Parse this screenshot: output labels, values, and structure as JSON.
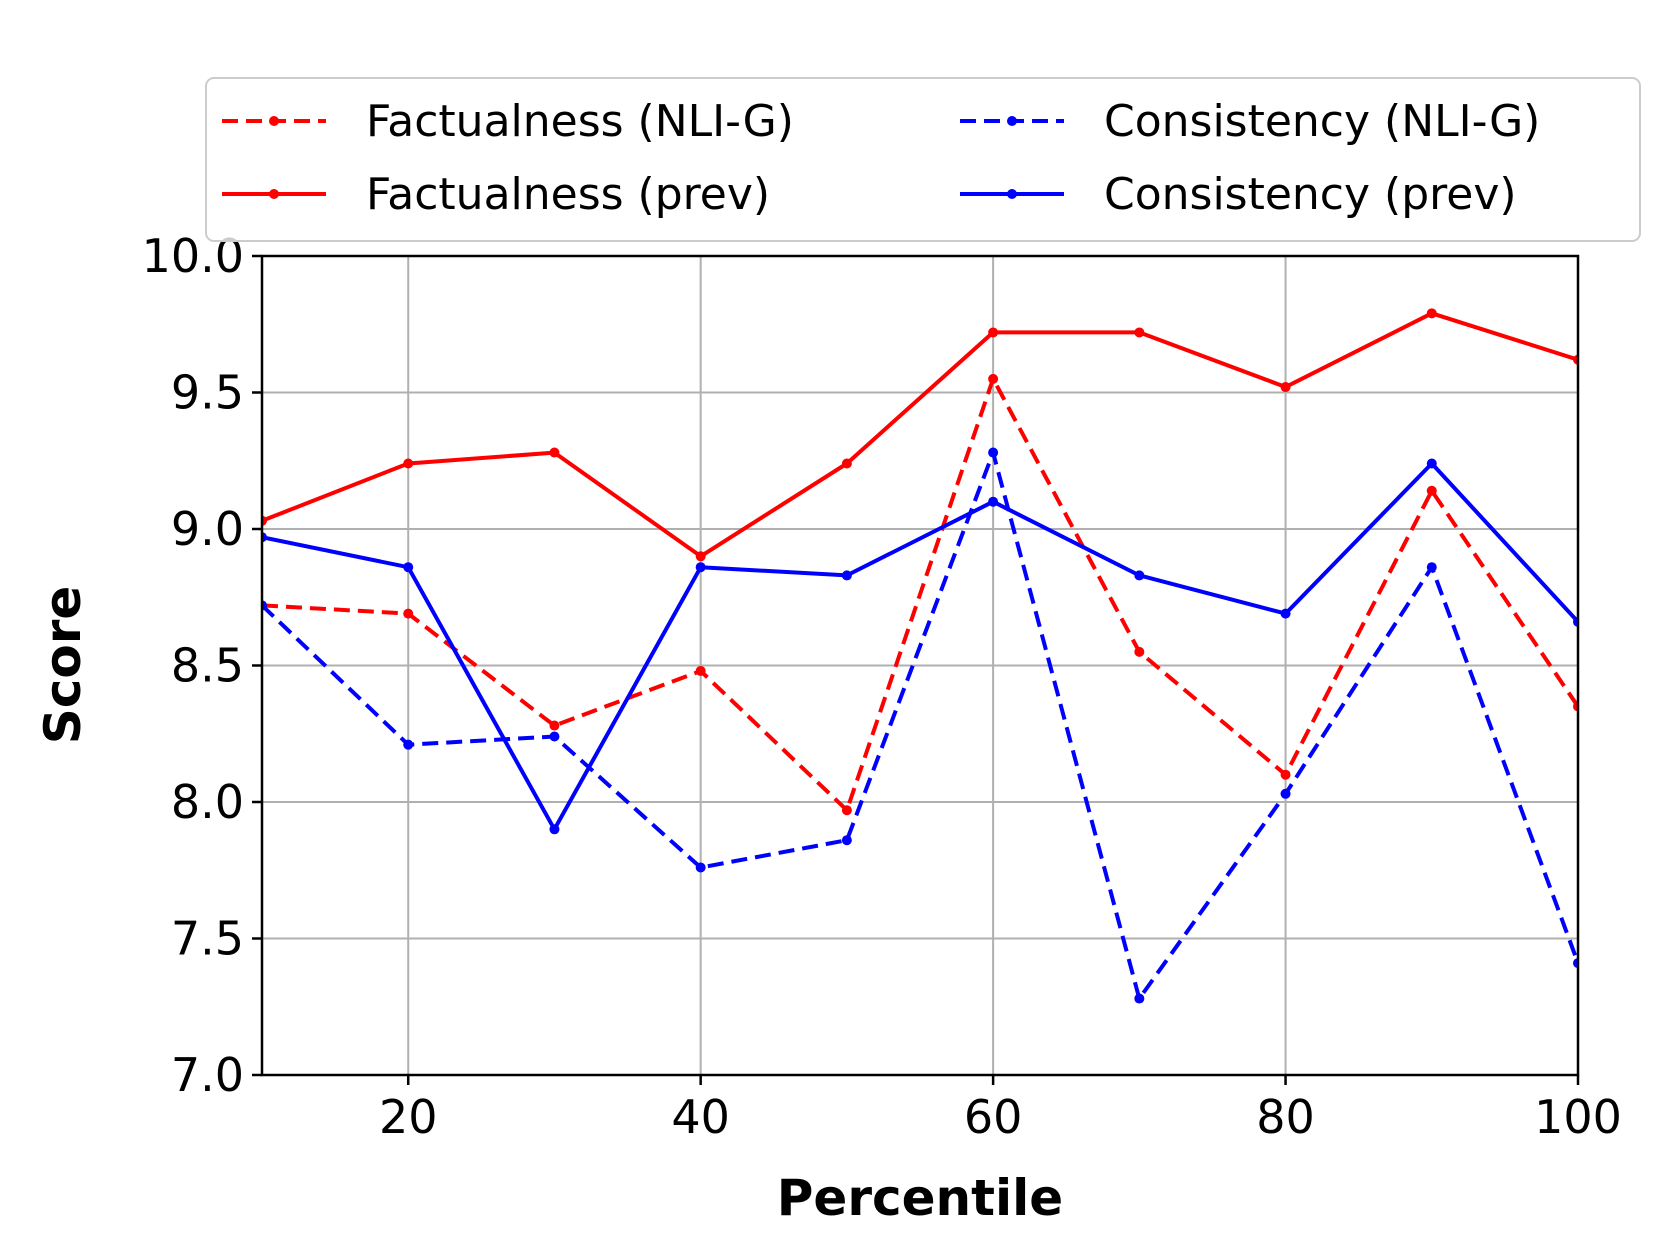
{
  "chart_data": {
    "type": "line",
    "title": "",
    "xlabel": "Percentile",
    "ylabel": "Score",
    "xlim": [
      10,
      100
    ],
    "ylim": [
      7.0,
      10.0
    ],
    "xticks": [
      20,
      40,
      60,
      80,
      100
    ],
    "yticks": [
      "7.0",
      "7.5",
      "8.0",
      "8.5",
      "9.0",
      "9.5",
      "10.0"
    ],
    "grid": true,
    "legend_position": "top",
    "x": [
      10,
      20,
      30,
      40,
      50,
      60,
      70,
      80,
      90,
      100
    ],
    "series": [
      {
        "name": "Factualness (NLI-G)",
        "color": "#ff0000",
        "style": "dashed",
        "values": [
          8.72,
          8.69,
          8.28,
          8.48,
          7.97,
          9.55,
          8.55,
          8.1,
          9.14,
          8.35
        ]
      },
      {
        "name": "Factualness (prev)",
        "color": "#ff0000",
        "style": "solid",
        "values": [
          9.03,
          9.24,
          9.28,
          8.9,
          9.24,
          9.72,
          9.72,
          9.52,
          9.79,
          9.62
        ]
      },
      {
        "name": "Consistency (NLI-G)",
        "color": "#0000ff",
        "style": "dashed",
        "values": [
          8.72,
          8.21,
          8.24,
          7.76,
          7.86,
          9.28,
          7.28,
          8.03,
          8.86,
          7.41
        ]
      },
      {
        "name": "Consistency (prev)",
        "color": "#0000ff",
        "style": "solid",
        "values": [
          8.97,
          8.86,
          7.9,
          8.86,
          8.83,
          9.1,
          8.83,
          8.69,
          9.24,
          8.66
        ]
      }
    ]
  }
}
